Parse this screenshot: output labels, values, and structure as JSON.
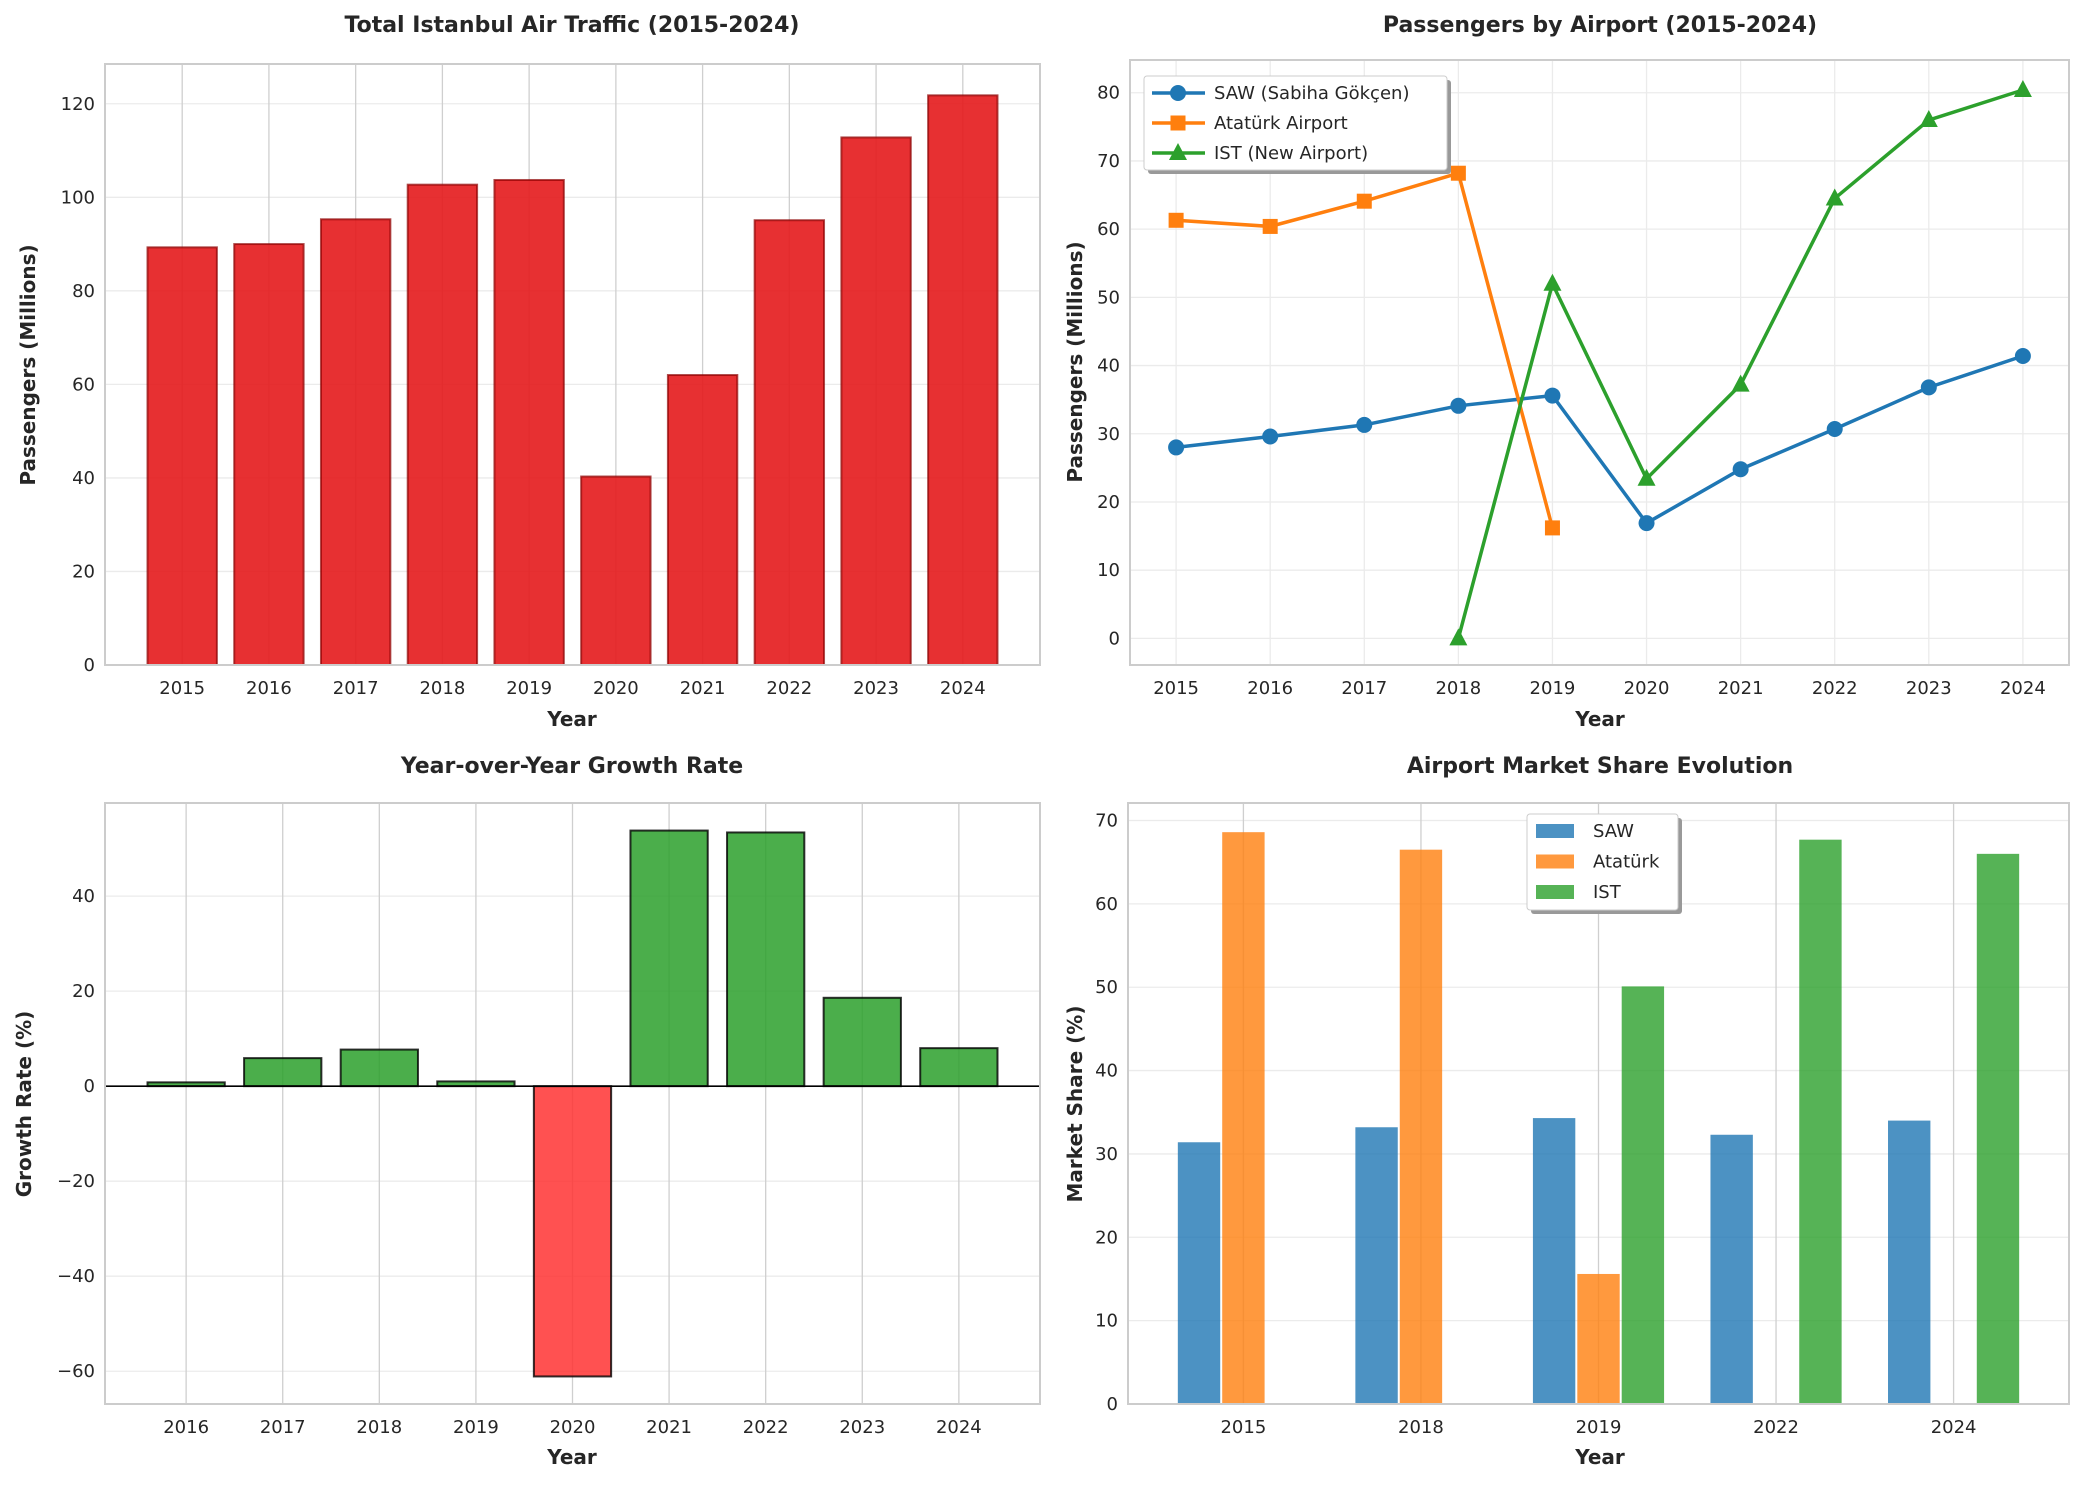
{
  "chart_data": [
    {
      "type": "bar",
      "title": "Total Istanbul Air Traffic (2015-2024)",
      "xlabel": "Year",
      "ylabel": "Passengers (Millions)",
      "categories": [
        "2015",
        "2016",
        "2017",
        "2018",
        "2019",
        "2020",
        "2021",
        "2022",
        "2023",
        "2024"
      ],
      "values": [
        89.3,
        90.0,
        95.3,
        102.7,
        103.7,
        40.3,
        62.0,
        95.1,
        112.8,
        121.8
      ],
      "ylim": [
        0,
        128.5
      ],
      "yticks": [
        0,
        20,
        40,
        60,
        80,
        100,
        120
      ],
      "grid": true,
      "colors": {
        "bar": "#e41a1c",
        "edge": "#8b0000"
      }
    },
    {
      "type": "line",
      "title": "Passengers by Airport (2015-2024)",
      "xlabel": "Year",
      "ylabel": "Passengers (Millions)",
      "x": [
        "2015",
        "2016",
        "2017",
        "2018",
        "2019",
        "2020",
        "2021",
        "2022",
        "2023",
        "2024"
      ],
      "series": [
        {
          "name": "SAW (Sabiha Gökçen)",
          "marker": "circle",
          "color": "#1f77b4",
          "values": [
            28.0,
            29.6,
            31.3,
            34.1,
            35.6,
            16.9,
            24.8,
            30.7,
            36.8,
            41.4
          ]
        },
        {
          "name": "Atatürk Airport",
          "marker": "square",
          "color": "#ff7f0e",
          "values": [
            61.3,
            60.4,
            64.1,
            68.2,
            16.2,
            null,
            null,
            null,
            null,
            null
          ]
        },
        {
          "name": "IST (New Airport)",
          "marker": "triangle",
          "color": "#2ca02c",
          "values": [
            null,
            null,
            null,
            0.0,
            52.0,
            23.4,
            37.2,
            64.5,
            76.0,
            80.4
          ]
        }
      ],
      "ylim": [
        -3.9,
        84.8
      ],
      "yticks": [
        0,
        10,
        20,
        30,
        40,
        50,
        60,
        70,
        80
      ],
      "grid": true,
      "legend": "top-left"
    },
    {
      "type": "bar",
      "title": "Year-over-Year Growth Rate",
      "xlabel": "Year",
      "ylabel": "Growth Rate (%)",
      "categories": [
        "2016",
        "2017",
        "2018",
        "2019",
        "2020",
        "2021",
        "2022",
        "2023",
        "2024"
      ],
      "values": [
        0.8,
        5.9,
        7.7,
        1.0,
        -61.1,
        53.8,
        53.4,
        18.6,
        8.0
      ],
      "ylim": [
        -66.9,
        59.6
      ],
      "yticks": [
        -60,
        -40,
        -20,
        0,
        20,
        40
      ],
      "grid": true,
      "colors": {
        "positive": "#2ca02c",
        "negative": "#ff3333",
        "edge": "#000000"
      }
    },
    {
      "type": "bar",
      "title": "Airport Market Share Evolution",
      "xlabel": "Year",
      "ylabel": "Market Share (%)",
      "categories": [
        "2015",
        "2018",
        "2019",
        "2022",
        "2024"
      ],
      "series": [
        {
          "name": "SAW",
          "color": "#1f77b4",
          "values": [
            31.4,
            33.2,
            34.3,
            32.3,
            34.0
          ]
        },
        {
          "name": "Atatürk",
          "color": "#ff7f0e",
          "values": [
            68.6,
            66.5,
            15.6,
            0,
            0
          ]
        },
        {
          "name": "IST",
          "color": "#2ca02c",
          "values": [
            0,
            0,
            50.1,
            67.7,
            66.0
          ]
        }
      ],
      "ylim": [
        0,
        72.1
      ],
      "yticks": [
        0,
        10,
        20,
        30,
        40,
        50,
        60,
        70
      ],
      "grid": true,
      "legend": "top-center"
    }
  ]
}
